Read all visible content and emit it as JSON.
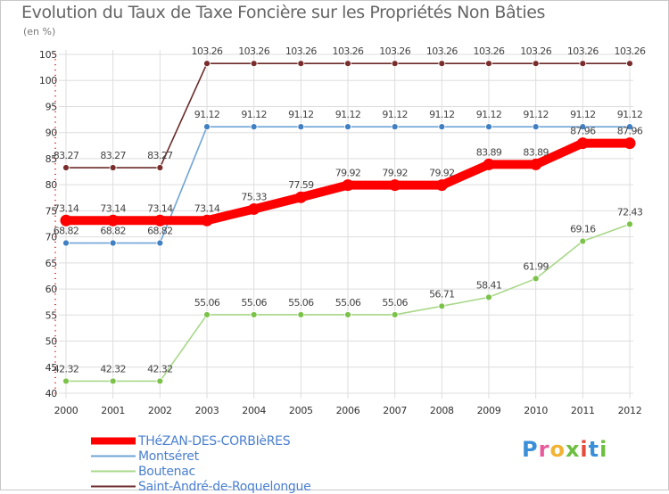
{
  "title": "Evolution du Taux de Taxe Foncière sur les Propriétés Non Bâties",
  "unit": "(en %)",
  "chart_data": {
    "type": "line",
    "title": "Evolution du Taux de Taxe Foncière sur les Propriétés Non Bâties",
    "ylabel": "(en %)",
    "xlabel": "",
    "ylim": [
      40,
      105
    ],
    "yticks": [
      40,
      45,
      50,
      55,
      60,
      65,
      70,
      75,
      80,
      85,
      90,
      95,
      100,
      105
    ],
    "x": [
      "2000",
      "2001",
      "2002",
      "2003",
      "2004",
      "2005",
      "2006",
      "2007",
      "2008",
      "2009",
      "2010",
      "2011",
      "2012"
    ],
    "grid": true,
    "series": [
      {
        "name": "Saint-André-de-Roquelongue",
        "color": "#6b2a2a",
        "marker": "#7a2d2d",
        "values": [
          83.27,
          83.27,
          83.27,
          103.26,
          103.26,
          103.26,
          103.26,
          103.26,
          103.26,
          103.26,
          103.26,
          103.26,
          103.26
        ],
        "labels": [
          "83.27",
          "83.27",
          "83.27",
          "103.26",
          "103.26",
          "103.26",
          "103.26",
          "103.26",
          "103.26",
          "103.26",
          "103.26",
          "103.26",
          "103.26"
        ]
      },
      {
        "name": "Montséret",
        "color": "#6fa4d6",
        "marker": "#3f7fc2",
        "values": [
          68.82,
          68.82,
          68.82,
          91.12,
          91.12,
          91.12,
          91.12,
          91.12,
          91.12,
          91.12,
          91.12,
          91.12,
          91.12
        ],
        "labels": [
          "68.82",
          "68.82",
          "68.82",
          "91.12",
          "91.12",
          "91.12",
          "91.12",
          "91.12",
          "91.12",
          "91.12",
          "91.12",
          "91.12",
          "91.12"
        ]
      },
      {
        "name": "Boutenac",
        "color": "#a8d888",
        "marker": "#7cc24a",
        "values": [
          42.32,
          42.32,
          42.32,
          55.06,
          55.06,
          55.06,
          55.06,
          55.06,
          56.71,
          58.41,
          61.99,
          69.16,
          72.43
        ],
        "labels": [
          "42.32",
          "42.32",
          "42.32",
          "55.06",
          "55.06",
          "55.06",
          "55.06",
          "55.06",
          "56.71",
          "58.41",
          "61.99",
          "69.16",
          "72.43"
        ]
      },
      {
        "name": "THéZAN-DES-CORBIèRES",
        "color": "#ff0000",
        "marker": "#ff0000",
        "values": [
          73.14,
          73.14,
          73.14,
          73.14,
          75.33,
          77.59,
          79.92,
          79.92,
          79.92,
          83.89,
          83.89,
          87.96,
          87.96
        ],
        "labels": [
          "73.14",
          "73.14",
          "73.14",
          "73.14",
          "75.33",
          "77.59",
          "79.92",
          "79.92",
          "79.92",
          "83.89",
          "83.89",
          "87.96",
          "87.96"
        ]
      }
    ]
  },
  "legend": [
    {
      "label": "THéZAN-DES-CORBIèRES",
      "color": "#ff0000"
    },
    {
      "label": "Montséret",
      "color": "#6fa4d6"
    },
    {
      "label": "Boutenac",
      "color": "#a8d888"
    },
    {
      "label": "Saint-André-de-Roquelongue",
      "color": "#6b2a2a"
    }
  ],
  "logo": {
    "letters": [
      "P",
      "r",
      "o",
      "x",
      "i",
      "t",
      "i"
    ],
    "colors": [
      "#3a8fd8",
      "#e85a9a",
      "#f2b233",
      "#6cbf3f",
      "#e74a3b",
      "#3a8fd8",
      "#6cbf3f"
    ]
  }
}
